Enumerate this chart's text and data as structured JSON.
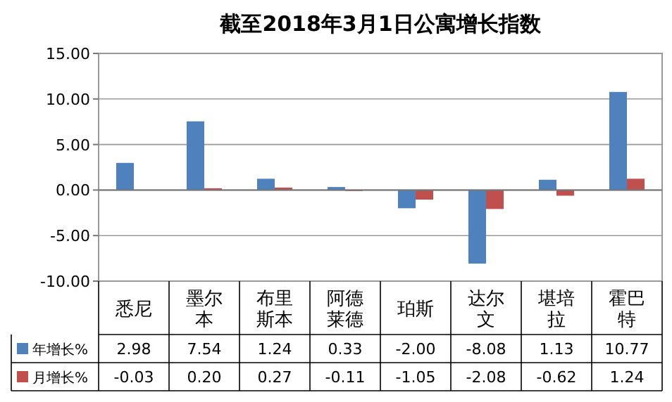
{
  "chart_data": {
    "type": "bar",
    "title": "截至2018年3月1日公寓增长指数",
    "categories": [
      "悉尼",
      "墨尔本",
      "布里斯本",
      "阿德莱德",
      "珀斯",
      "达尔文",
      "堪培拉",
      "霍巴特"
    ],
    "series": [
      {
        "name": "年增长%",
        "color": "#4f81bd",
        "values": [
          2.98,
          7.54,
          1.24,
          0.33,
          -2.0,
          -8.08,
          1.13,
          10.77
        ],
        "value_labels": [
          "2.98",
          "7.54",
          "1.24",
          "0.33",
          "-2.00",
          "-8.08",
          "1.13",
          "10.77"
        ]
      },
      {
        "name": "月增长%",
        "color": "#c0504d",
        "values": [
          -0.03,
          0.2,
          0.27,
          -0.11,
          -1.05,
          -2.08,
          -0.62,
          1.24
        ],
        "value_labels": [
          "-0.03",
          "0.20",
          "0.27",
          "-0.11",
          "-1.05",
          "-2.08",
          "-0.62",
          "1.24"
        ]
      }
    ],
    "ylim": [
      -10,
      15
    ],
    "yticks": [
      {
        "value": -10,
        "label": "-10.00"
      },
      {
        "value": -5,
        "label": "-5.00"
      },
      {
        "value": 0,
        "label": "0.00"
      },
      {
        "value": 5,
        "label": "5.00"
      },
      {
        "value": 10,
        "label": "10.00"
      },
      {
        "value": 15,
        "label": "15.00"
      }
    ],
    "grid": "y",
    "legend": "bottom left"
  }
}
